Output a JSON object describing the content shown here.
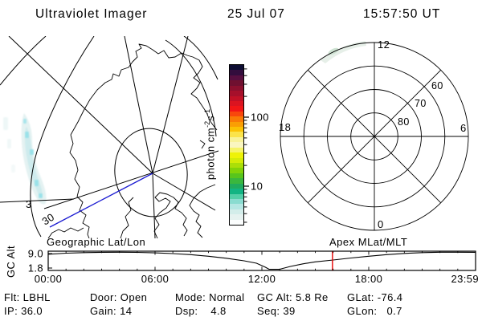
{
  "header": {
    "title": "Ultraviolet Imager",
    "date": "25 Jul 07",
    "time": "15:57:50 UT"
  },
  "colors": {
    "background": "#ffffff",
    "ink": "#000000",
    "track_blue": "#1b1bd1",
    "time_marker_red": "#e60000",
    "aurora_faint": "#e3f1f1",
    "aurora_mid": "#c9eaec",
    "aurora_bright": "#90dfe9",
    "polar_arc_faint": "#e3ede5",
    "polar_arc_spot": "#cfe3d3"
  },
  "map_panel": {
    "caption": "Geographic Lat/Lon",
    "grid_label_3": "3",
    "track_label": "30"
  },
  "polar_panel": {
    "caption": "Apex MLat/MLT",
    "mlt_top": "12",
    "mlt_left": "18",
    "mlt_right": "6",
    "mlt_bottom": "0",
    "ring_labels": [
      "80",
      "70",
      "60"
    ]
  },
  "colorbar": {
    "label_parts": [
      "photon cm",
      "-2",
      "s",
      "-1"
    ],
    "major_ticks": [
      {
        "value": 100,
        "label": "100"
      },
      {
        "value": 10,
        "label": "10"
      }
    ],
    "minor_tick_values": [
      3,
      4,
      5,
      6,
      7,
      8,
      9,
      20,
      30,
      40,
      50,
      60,
      70,
      80,
      90,
      200,
      300,
      400,
      500
    ],
    "scale": "log",
    "colors": [
      "#0d0d33",
      "#330d3d",
      "#570f40",
      "#701030",
      "#8c102e",
      "#a6102b",
      "#c11126",
      "#db1420",
      "#f21616",
      "#f8470c",
      "#f97a06",
      "#fa9e04",
      "#fbc204",
      "#fbe34a",
      "#f8f29a",
      "#faf6c0",
      "#f6f468",
      "#eef307",
      "#d4ec08",
      "#abdf08",
      "#82d309",
      "#58c51c",
      "#3ab73e",
      "#20ab5e",
      "#12b483",
      "#52cfa8",
      "#8adcd0",
      "#b5e7e3",
      "#d3edea",
      "#e6f2f0",
      "#fbfdfd"
    ]
  },
  "strip_chart": {
    "ylabel": "GC Alt",
    "y_ticks": [
      {
        "value": 9.0,
        "label": "9.0"
      },
      {
        "value": 1.8,
        "label": "1.8"
      }
    ],
    "x_ticks": [
      {
        "hour": 0,
        "label": "00:00"
      },
      {
        "hour": 6,
        "label": "06:00"
      },
      {
        "hour": 12,
        "label": "12:00"
      },
      {
        "hour": 18,
        "label": "18:00"
      },
      {
        "hour": 23.983,
        "label": "23:59"
      }
    ]
  },
  "status": {
    "rows": [
      [
        {
          "label": "Flt",
          "value": "LBHL"
        },
        {
          "label": "Door",
          "value": "Open"
        },
        {
          "label": "Mode",
          "value": "Normal"
        },
        {
          "label": "GC Alt",
          "value": "5.8 Re"
        },
        {
          "label": "GLat",
          "value": "-76.4"
        }
      ],
      [
        {
          "label": "IP",
          "value": "36.0"
        },
        {
          "label": "Gain",
          "value": "14"
        },
        {
          "label": "Dsp",
          "value": "   4.8"
        },
        {
          "label": "Seq",
          "value": "39"
        },
        {
          "label": "GLon",
          "value": "  0.7"
        }
      ]
    ]
  },
  "chart_data": {
    "type": "line",
    "title": "Spacecraft geocentric altitude vs UT",
    "xlabel": "UT",
    "ylabel": "GC Alt",
    "x_tick_labels": [
      "00:00",
      "06:00",
      "12:00",
      "18:00",
      "23:59"
    ],
    "y_tick_values": [
      9.0,
      1.8
    ],
    "xlim_hours": [
      0,
      24
    ],
    "ylim_re": [
      0.6,
      10.2
    ],
    "grid": false,
    "x_hours": [
      0,
      1,
      2,
      3,
      4,
      5,
      6,
      7,
      8,
      9,
      10,
      11,
      11.7,
      12.2,
      12.4,
      13.0,
      13.6,
      14.3,
      15.0,
      16.0,
      17.0,
      18.0,
      19.0,
      20.0,
      21.0,
      22.0,
      23.0,
      23.98
    ],
    "altitude_re": [
      8.7,
      9.2,
      9.5,
      9.65,
      9.7,
      9.6,
      9.35,
      9.0,
      8.5,
      7.7,
      6.7,
      5.4,
      4.2,
      2.2,
      1.2,
      1.2,
      2.6,
      3.9,
      4.9,
      5.8,
      6.8,
      7.7,
      8.5,
      9.1,
      9.5,
      9.7,
      9.7,
      9.65
    ],
    "current_time_hour": 15.964,
    "current_gc_alt_re": 5.8
  }
}
